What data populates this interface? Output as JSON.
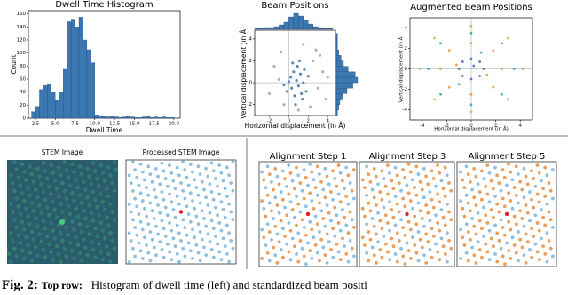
{
  "chart_data": [
    {
      "type": "histogram",
      "title": "Dwell Time Histogram",
      "xlabel": "Dwell Time",
      "ylabel": "Count",
      "color": "#3b78b1",
      "bins": [
        2.0,
        2.5,
        3.0,
        3.5,
        4.0,
        4.5,
        5.0,
        5.5,
        6.0,
        6.5,
        7.0,
        7.5,
        8.0,
        8.5,
        9.0,
        9.5,
        10.0,
        10.5,
        11.0,
        11.5,
        12.0,
        12.5,
        13.0,
        13.5,
        14.0,
        14.5,
        15.0,
        15.5,
        16.0,
        16.5,
        17.0,
        17.5,
        18.0,
        18.5,
        19.0,
        19.5,
        20.0
      ],
      "values": [
        10,
        18,
        44,
        50,
        52,
        40,
        28,
        40,
        75,
        148,
        152,
        140,
        155,
        120,
        105,
        85,
        5,
        4,
        3,
        2,
        3,
        2,
        1,
        2,
        3,
        2,
        1,
        1,
        2,
        3,
        1,
        2,
        1,
        2,
        1,
        1
      ],
      "xlim": [
        1.6,
        20.8
      ],
      "ylim": [
        0,
        165
      ],
      "xticks": [
        {
          "value": 2.5,
          "label": "2.5"
        },
        {
          "value": 5,
          "label": "5.0"
        },
        {
          "value": 7.5,
          "label": "7.5"
        },
        {
          "value": 10,
          "label": "10.0"
        },
        {
          "value": 12.5,
          "label": "12.5"
        },
        {
          "value": 15,
          "label": "15.0"
        },
        {
          "value": 17.5,
          "label": "17.5"
        },
        {
          "value": 20,
          "label": "20.0"
        }
      ],
      "yticks": [
        0,
        20,
        40,
        60,
        80,
        100,
        120,
        140,
        160
      ]
    },
    {
      "type": "scatter",
      "title": "Beam Positions",
      "xlabel": "Horizontal displacement (in Å)",
      "ylabel": "Vertical displacement (in Å)",
      "xlim": [
        -3.5,
        4.8
      ],
      "ylim": [
        -3,
        4.8
      ],
      "xticks": [
        -2,
        0,
        2,
        4
      ],
      "yticks": [
        -2,
        0,
        2,
        4
      ],
      "series": [
        {
          "color": "#a0a0a0",
          "x": [
            -1.5,
            -0.8,
            2.5,
            3.0,
            3.5,
            -2.0,
            2.8,
            1.5,
            3.8,
            -0.5,
            2.2,
            4.0,
            1.0,
            -1.0,
            3.2
          ],
          "y": [
            1.5,
            2.8,
            2.0,
            -0.5,
            1.0,
            -1.0,
            3.0,
            3.5,
            -1.5,
            -2.0,
            -2.2,
            0.5,
            -2.5,
            0.3,
            2.5
          ]
        },
        {
          "color": "#2f6fb0",
          "x": [
            0.2,
            0.5,
            0.8,
            1.0,
            1.2,
            1.5,
            1.8,
            0.3,
            0.6,
            0.9,
            1.4,
            2.0,
            -0.2,
            0.0,
            1.1,
            0.7,
            1.6,
            0.4,
            -0.5,
            1.3
          ],
          "y": [
            0.5,
            1.0,
            0.2,
            -0.3,
            0.8,
            0.0,
            -0.8,
            -0.5,
            -1.2,
            1.5,
            -1.5,
            0.6,
            -0.8,
            0.1,
            2.0,
            -2.0,
            1.2,
            1.8,
            -0.2,
            -1.0
          ]
        }
      ],
      "x_hist": {
        "color": "#3b78b1",
        "bins": [
          -3.5,
          -3.0,
          -2.5,
          -2.0,
          -1.5,
          -1.0,
          -0.5,
          0.0,
          0.5,
          1.0,
          1.5,
          2.0,
          2.5,
          3.0,
          3.5,
          4.0,
          4.5
        ],
        "values": [
          1,
          1,
          2,
          2,
          3,
          5,
          8,
          14,
          18,
          15,
          10,
          6,
          3,
          2,
          1,
          1
        ]
      },
      "y_hist": {
        "color": "#3b78b1",
        "bins": [
          -3.0,
          -2.5,
          -2.0,
          -1.5,
          -1.0,
          -0.5,
          0.0,
          0.5,
          1.0,
          1.5,
          2.0,
          2.5,
          3.0,
          3.5,
          4.0,
          4.5
        ],
        "values": [
          1,
          2,
          3,
          5,
          9,
          14,
          18,
          16,
          10,
          6,
          4,
          2,
          1,
          1,
          1
        ]
      }
    },
    {
      "type": "scatter",
      "title": "Augmented Beam Positions",
      "xlabel": "Horizontal displacement (in Å)",
      "ylabel": "Vertical displacement (in Å)",
      "xlim": [
        -5,
        5
      ],
      "ylim": [
        -5,
        5
      ],
      "xticks": [
        -4,
        -2,
        0,
        2,
        4
      ],
      "yticks": [
        -4,
        -2,
        0,
        2,
        4
      ],
      "series": [
        {
          "color": "#e8892b",
          "x": [
            -2.5,
            2.5,
            0,
            0,
            -1.8,
            1.8,
            -1.8,
            1.8,
            -1.2,
            1.3
          ],
          "y": [
            0,
            0,
            2.5,
            -2.5,
            1.8,
            1.8,
            -1.8,
            -1.8,
            0.4,
            -0.6
          ]
        },
        {
          "color": "#1f9e89",
          "x": [
            -3.5,
            3.5,
            0,
            0,
            -2.5,
            2.5,
            -2.5,
            2.5,
            -1.0,
            0.8
          ],
          "y": [
            0,
            0,
            3.5,
            -3.5,
            2.5,
            2.5,
            -2.5,
            -2.5,
            -1.5,
            1.6
          ]
        },
        {
          "color": "#3060c0",
          "x": [
            -1.0,
            1.0,
            0,
            0,
            -0.7,
            0.7,
            -0.7,
            0.7,
            0.2
          ],
          "y": [
            0,
            0,
            1.0,
            -1.0,
            0.7,
            0.7,
            -0.7,
            -0.7,
            0.3
          ]
        },
        {
          "color": "#8fc54a",
          "x": [
            -4.2,
            4.2,
            0,
            0,
            -3.0,
            3.0,
            -3.0,
            3.0
          ],
          "y": [
            0,
            0,
            4.2,
            -4.2,
            3.0,
            3.0,
            -3.0,
            -3.0
          ]
        }
      ]
    }
  ],
  "images": {
    "stem": "STEM Image",
    "processed": "Processed STEM Image",
    "steps": [
      "Alignment Step 1",
      "Alignment Step 3",
      "Alignment Step 5"
    ]
  },
  "caption": {
    "label": "Fig. 2:",
    "lead": "Top row:",
    "text": "Histogram of dwell time (left) and standardized beam positi"
  }
}
